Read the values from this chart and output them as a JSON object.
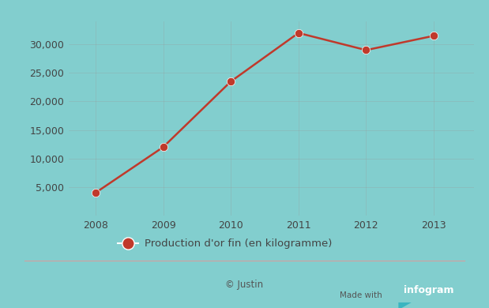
{
  "years": [
    2008,
    2009,
    2010,
    2011,
    2012,
    2013
  ],
  "values": [
    4000,
    12000,
    23500,
    32000,
    29000,
    31500
  ],
  "line_color": "#c0392b",
  "marker_color": "#c0392b",
  "background_color": "#82cece",
  "grid_color": "#999999",
  "legend_label": "Production d'or fin (en kilogramme)",
  "footer_text": "© Justin",
  "yticks": [
    5000,
    10000,
    15000,
    20000,
    25000,
    30000
  ],
  "ylim": [
    0,
    34000
  ],
  "xlim": [
    2007.6,
    2013.6
  ],
  "separator_color": "#d4a0a0",
  "badge_color": "#3ab5c0",
  "text_color": "#555555",
  "tick_color": "#444444"
}
